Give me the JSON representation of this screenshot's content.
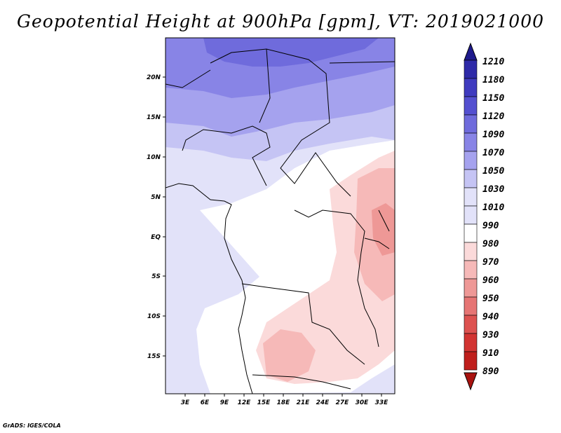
{
  "title": "Geopotential Height at 900hPa [gpm], VT: 2019021000",
  "credit": "GrADS: IGES/COLA",
  "map": {
    "x_ticks": [
      "3E",
      "6E",
      "9E",
      "12E",
      "15E",
      "18E",
      "21E",
      "24E",
      "27E",
      "30E",
      "33E"
    ],
    "y_ticks": [
      "20N",
      "15N",
      "10N",
      "5N",
      "EQ",
      "5S",
      "10S",
      "15S"
    ]
  },
  "colorbar": {
    "levels": [
      "1210",
      "1180",
      "1150",
      "1120",
      "1090",
      "1070",
      "1050",
      "1030",
      "1010",
      "990",
      "980",
      "970",
      "960",
      "950",
      "940",
      "930",
      "910",
      "890"
    ],
    "colors": [
      "#1e1a8c",
      "#2e2aa8",
      "#3f3bbf",
      "#5450d0",
      "#6f6bdc",
      "#8884e6",
      "#a5a2ee",
      "#c5c4f4",
      "#e2e2f9",
      "#ffffff",
      "#fbdada",
      "#f6b9b8",
      "#ee9896",
      "#e67574",
      "#dd5250",
      "#d23432",
      "#bf1f1c",
      "#a8120f"
    ],
    "top_arrow_color": "#1e1a8c",
    "bottom_arrow_color": "#a8120f"
  }
}
